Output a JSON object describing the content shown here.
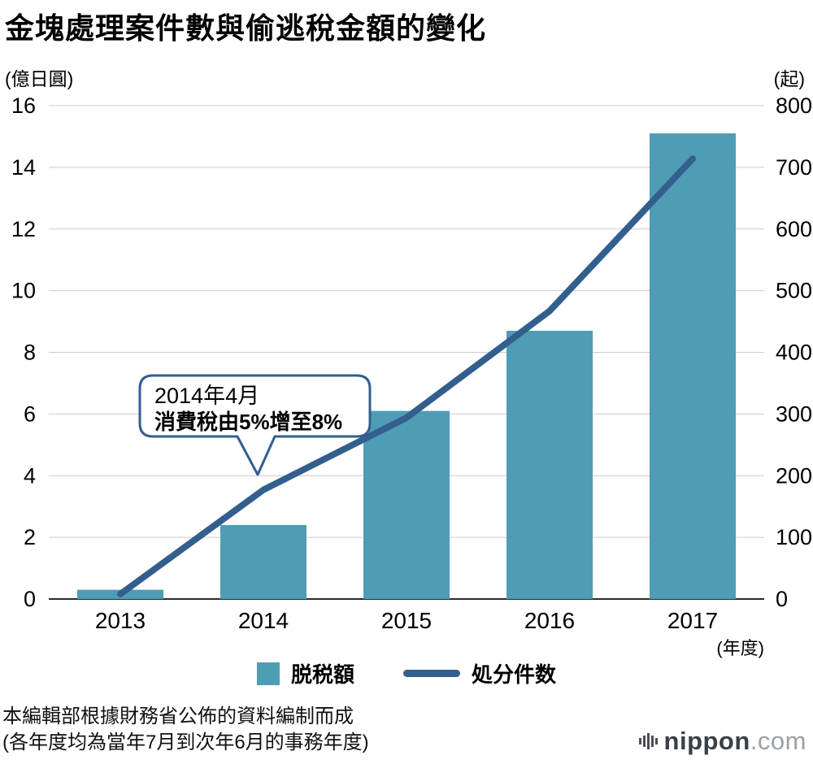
{
  "colors": {
    "bar": "#4f9db4",
    "line": "#335f8e",
    "grid": "#cccccc",
    "baseline": "#2b2b2b"
  },
  "footer": {
    "line1": "本編輯部根據財務省公佈的資料編制而成",
    "line2": "(各年度均為當年7月到次年6月的事務年度)"
  },
  "logo": {
    "name": "nippon",
    "tld": ".com"
  },
  "chart_data": {
    "type": "bar",
    "title": "金塊處理案件數與偷逃稅金額的變化",
    "categories": [
      "2013",
      "2014",
      "2015",
      "2016",
      "2017"
    ],
    "series": [
      {
        "name": "脱税額",
        "kind": "bar",
        "axis": "left",
        "values": [
          0.3,
          2.4,
          6.1,
          8.7,
          15.1
        ]
      },
      {
        "name": "処分件数",
        "kind": "line",
        "axis": "right",
        "values": [
          8,
          177,
          294,
          467,
          714
        ]
      }
    ],
    "left_axis": {
      "label": "(億日圓)",
      "min": 0,
      "max": 16,
      "step": 2
    },
    "right_axis": {
      "label": "(起)",
      "min": 0,
      "max": 800,
      "step": 100
    },
    "xlabel": "(年度)",
    "grid": true,
    "legend_position": "bottom",
    "annotation": {
      "line1": "2014年4月",
      "line2": "消費稅由5%增至8%",
      "attached_to": "2014"
    }
  }
}
